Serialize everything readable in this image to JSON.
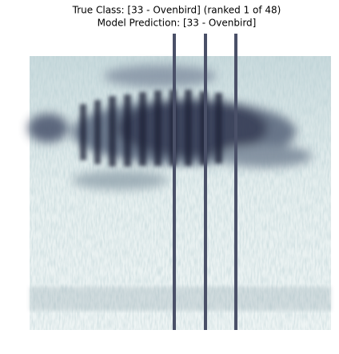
{
  "header": {
    "title": "True Class: [33 - Ovenbird] (ranked 1 of 48)",
    "subtitle": "Model Prediction: [33 - Ovenbird]"
  }
}
